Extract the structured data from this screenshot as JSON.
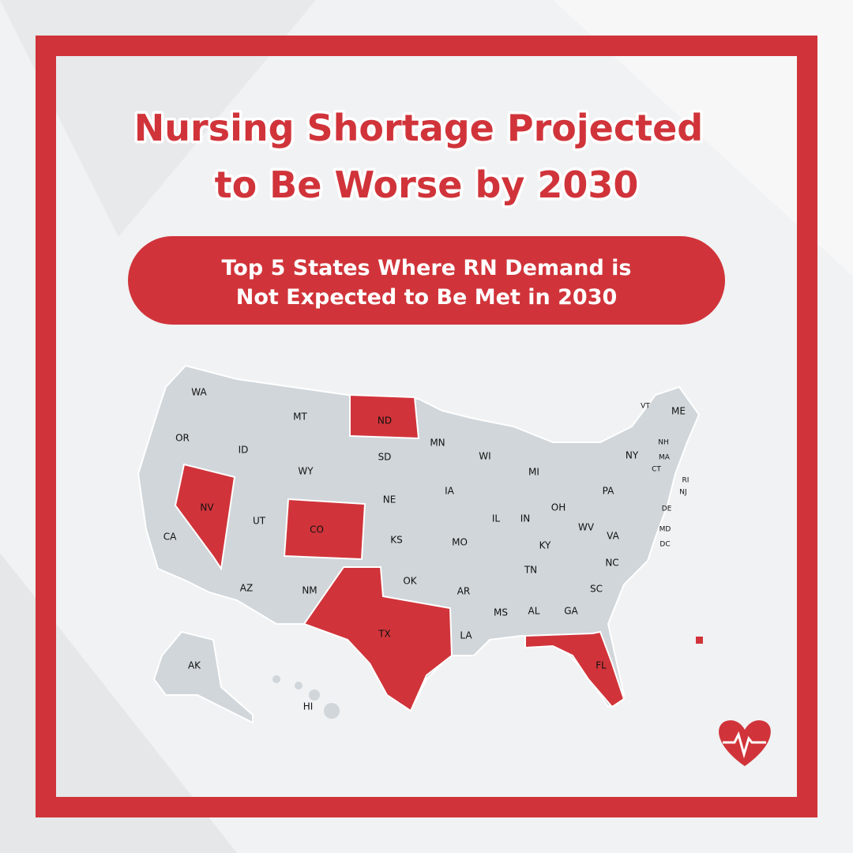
{
  "header": {
    "title": [
      "Nursing Shortage Projected",
      "to Be Worse by 2030"
    ],
    "subtitle": [
      "Top 5 States Where RN Demand is",
      "Not Expected to Be Met in 2030"
    ]
  },
  "map": {
    "highlight_color": "#d0343a",
    "base_color": "#d0d6da",
    "states": [
      {
        "label": "WA",
        "highlighted": false
      },
      {
        "label": "OR",
        "highlighted": false
      },
      {
        "label": "CA",
        "highlighted": false
      },
      {
        "label": "NV",
        "highlighted": true
      },
      {
        "label": "ID",
        "highlighted": false
      },
      {
        "label": "MT",
        "highlighted": false
      },
      {
        "label": "WY",
        "highlighted": false
      },
      {
        "label": "UT",
        "highlighted": false
      },
      {
        "label": "CO",
        "highlighted": true
      },
      {
        "label": "AZ",
        "highlighted": false
      },
      {
        "label": "NM",
        "highlighted": false
      },
      {
        "label": "ND",
        "highlighted": true
      },
      {
        "label": "SD",
        "highlighted": false
      },
      {
        "label": "NE",
        "highlighted": false
      },
      {
        "label": "KS",
        "highlighted": false
      },
      {
        "label": "OK",
        "highlighted": false
      },
      {
        "label": "TX",
        "highlighted": true
      },
      {
        "label": "MN",
        "highlighted": false
      },
      {
        "label": "IA",
        "highlighted": false
      },
      {
        "label": "MO",
        "highlighted": false
      },
      {
        "label": "AR",
        "highlighted": false
      },
      {
        "label": "LA",
        "highlighted": false
      },
      {
        "label": "WI",
        "highlighted": false
      },
      {
        "label": "IL",
        "highlighted": false
      },
      {
        "label": "MI",
        "highlighted": false
      },
      {
        "label": "IN",
        "highlighted": false
      },
      {
        "label": "OH",
        "highlighted": false
      },
      {
        "label": "KY",
        "highlighted": false
      },
      {
        "label": "TN",
        "highlighted": false
      },
      {
        "label": "MS",
        "highlighted": false
      },
      {
        "label": "AL",
        "highlighted": false
      },
      {
        "label": "GA",
        "highlighted": false
      },
      {
        "label": "FL",
        "highlighted": true
      },
      {
        "label": "SC",
        "highlighted": false
      },
      {
        "label": "NC",
        "highlighted": false
      },
      {
        "label": "VA",
        "highlighted": false
      },
      {
        "label": "WV",
        "highlighted": false
      },
      {
        "label": "PA",
        "highlighted": false
      },
      {
        "label": "NY",
        "highlighted": false
      },
      {
        "label": "VT",
        "highlighted": false
      },
      {
        "label": "NH",
        "highlighted": false
      },
      {
        "label": "ME",
        "highlighted": false
      },
      {
        "label": "MA",
        "highlighted": false
      },
      {
        "label": "CT",
        "highlighted": false
      },
      {
        "label": "RI",
        "highlighted": false
      },
      {
        "label": "NJ",
        "highlighted": false
      },
      {
        "label": "DE",
        "highlighted": false
      },
      {
        "label": "MD",
        "highlighted": false
      },
      {
        "label": "DC",
        "highlighted": false
      },
      {
        "label": "AK",
        "highlighted": false
      },
      {
        "label": "HI",
        "highlighted": false
      }
    ]
  }
}
